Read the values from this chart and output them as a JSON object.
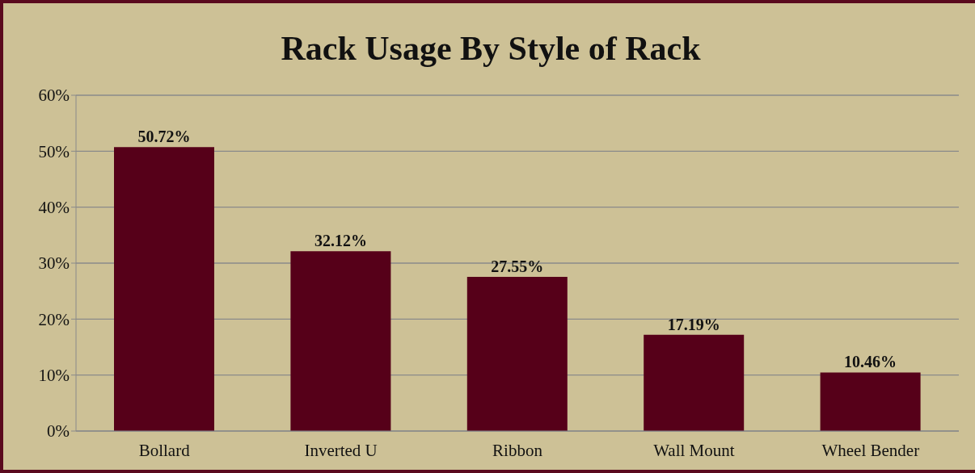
{
  "chart_data": {
    "type": "bar",
    "title": "Rack Usage By Style of Rack",
    "categories": [
      "Bollard",
      "Inverted U",
      "Ribbon",
      "Wall Mount",
      "Wheel Bender"
    ],
    "values": [
      50.72,
      32.12,
      27.55,
      17.19,
      10.46
    ],
    "value_labels": [
      "50.72%",
      "32.12%",
      "27.55%",
      "17.19%",
      "10.46%"
    ],
    "color": "#560019",
    "ylim": [
      0,
      60
    ],
    "yticks": [
      {
        "value": 0,
        "label": "0%"
      },
      {
        "value": 10,
        "label": "10%"
      },
      {
        "value": 20,
        "label": "20%"
      },
      {
        "value": 30,
        "label": "30%"
      },
      {
        "value": 40,
        "label": "40%"
      },
      {
        "value": 50,
        "label": "50%"
      },
      {
        "value": 60,
        "label": "60%"
      }
    ],
    "grid": "y",
    "legend": false
  }
}
